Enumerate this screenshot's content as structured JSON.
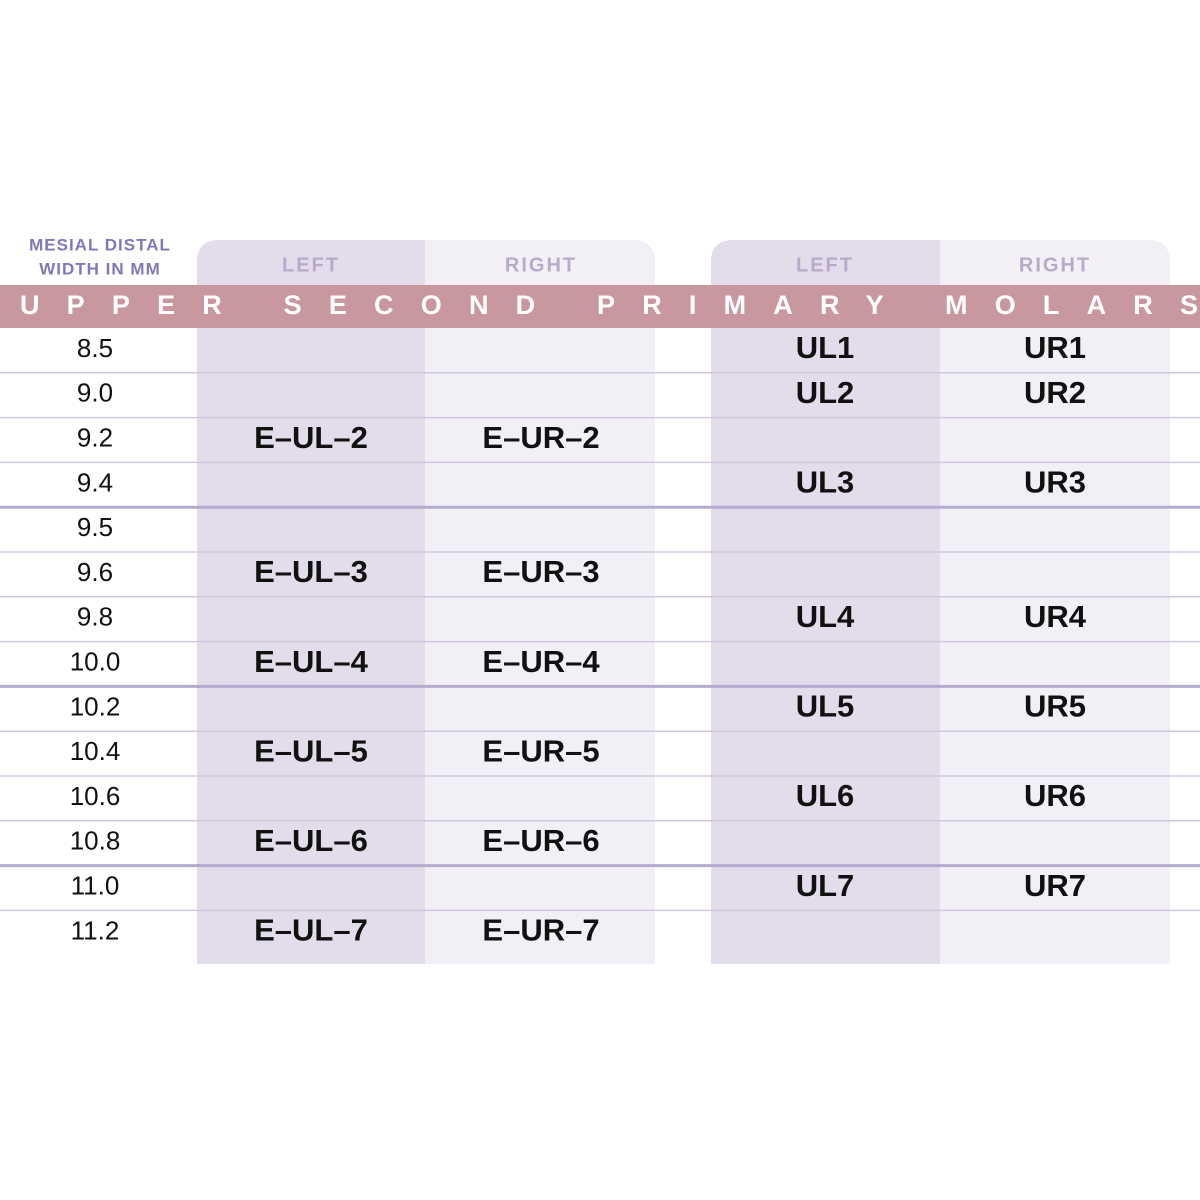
{
  "header": {
    "width_label_line1": "MESIAL DISTAL",
    "width_label_line2": "WIDTH IN MM",
    "columns": [
      "LEFT",
      "RIGHT",
      "LEFT",
      "RIGHT"
    ],
    "banner": "UPPER SECOND PRIMARY MOLARS"
  },
  "table": {
    "rows": [
      [
        "8.5",
        null,
        null,
        "UL1",
        "UR1"
      ],
      [
        "9.0",
        null,
        null,
        "UL2",
        "UR2"
      ],
      [
        "9.2",
        "E–UL–2",
        "E–UR–2",
        null,
        null
      ],
      [
        "9.4",
        null,
        null,
        "UL3",
        "UR3"
      ],
      [
        "9.5",
        null,
        null,
        null,
        null
      ],
      [
        "9.6",
        "E–UL–3",
        "E–UR–3",
        null,
        null
      ],
      [
        "9.8",
        null,
        null,
        "UL4",
        "UR4"
      ],
      [
        "10.0",
        "E–UL–4",
        "E–UR–4",
        null,
        null
      ],
      [
        "10.2",
        null,
        null,
        "UL5",
        "UR5"
      ],
      [
        "10.4",
        "E–UL–5",
        "E–UR–5",
        null,
        null
      ],
      [
        "10.6",
        null,
        null,
        "UL6",
        "UR6"
      ],
      [
        "10.8",
        "E–UL–6",
        "E–UR–6",
        null,
        null
      ],
      [
        "11.0",
        null,
        null,
        "UL7",
        "UR7"
      ],
      [
        "11.2",
        "E–UL–7",
        "E–UR–7",
        null,
        null
      ]
    ]
  }
}
